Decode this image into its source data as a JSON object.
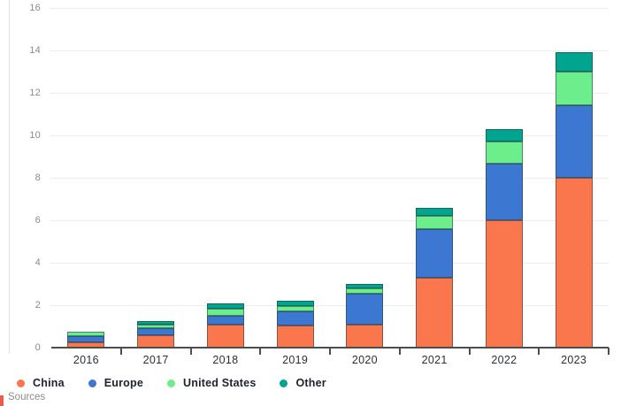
{
  "chart_data": {
    "type": "bar",
    "stacked": true,
    "title": "",
    "xlabel": "",
    "ylabel": "",
    "categories": [
      "2016",
      "2017",
      "2018",
      "2019",
      "2020",
      "2021",
      "2022",
      "2023"
    ],
    "series": [
      {
        "name": "China",
        "color": "#fa764c",
        "values": [
          0.25,
          0.6,
          1.1,
          1.05,
          1.1,
          3.3,
          6.0,
          8.0
        ]
      },
      {
        "name": "Europe",
        "color": "#3c78d2",
        "values": [
          0.3,
          0.3,
          0.4,
          0.65,
          1.45,
          2.3,
          2.65,
          3.4
        ]
      },
      {
        "name": "United States",
        "color": "#6cee8d",
        "values": [
          0.2,
          0.2,
          0.35,
          0.25,
          0.25,
          0.6,
          1.05,
          1.6
        ]
      },
      {
        "name": "Other",
        "color": "#00a48f",
        "values": [
          0.02,
          0.15,
          0.25,
          0.25,
          0.2,
          0.4,
          0.6,
          0.9
        ]
      }
    ],
    "ylim": [
      0,
      16
    ],
    "yticks": [
      "0",
      "2",
      "4",
      "6",
      "8",
      "10",
      "12",
      "14",
      "16"
    ],
    "grid": true,
    "legend_position": "bottom-left"
  },
  "footer": {
    "sources_label": "Sources"
  },
  "colors": {
    "grid": "#ececec",
    "axis": "#4d4d4d",
    "ytick_text": "#8a8a8a",
    "xtick_text": "#2c2f3a",
    "legend_text": "#20242f",
    "sources_text": "#8c8c8c",
    "accent": "#ee5a4f"
  }
}
